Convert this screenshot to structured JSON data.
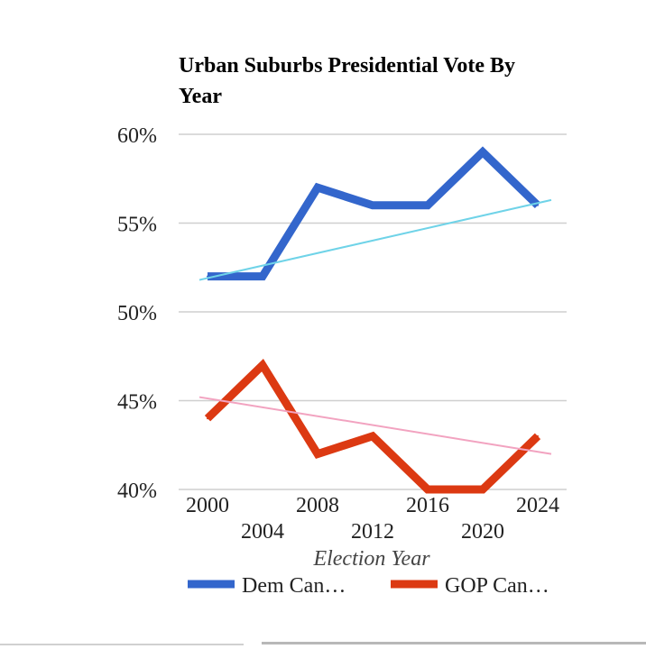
{
  "chart_data": {
    "type": "line",
    "title": "Urban Suburbs Presidential Vote By Year",
    "xlabel": "Election Year",
    "ylabel": "",
    "x": [
      "2000",
      "2004",
      "2008",
      "2012",
      "2016",
      "2020",
      "2024"
    ],
    "ylim": [
      40,
      60
    ],
    "yticks": [
      "40%",
      "45%",
      "50%",
      "55%",
      "60%"
    ],
    "grid": true,
    "legend": "bottom",
    "series": [
      {
        "name": "Dem Can…",
        "color": "#3366cc",
        "values": [
          52,
          52,
          57,
          56,
          56,
          59,
          56
        ],
        "trendline": {
          "color": "#6fd3e8",
          "start": 51.8,
          "end": 56.3
        }
      },
      {
        "name": "GOP Can…",
        "color": "#dc3912",
        "values": [
          44,
          47,
          42,
          43,
          40,
          40,
          43
        ],
        "trendline": {
          "color": "#f2a3c0",
          "start": 45.2,
          "end": 42.0
        }
      }
    ]
  }
}
